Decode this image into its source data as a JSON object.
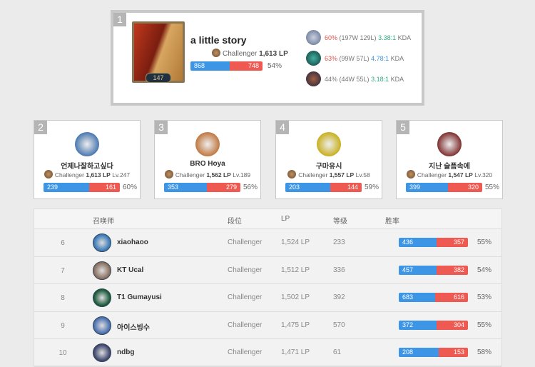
{
  "colors": {
    "win": "#3d95e5",
    "loss": "#ee5a52",
    "background": "#ebebeb"
  },
  "top": {
    "rank": "1",
    "name": "a little story",
    "level": "147",
    "tier": "Challenger",
    "lp": "1,613 LP",
    "wins": "868",
    "losses": "748",
    "winrate": "54%",
    "win_fraction": 0.54,
    "champions": [
      {
        "wr": "60%",
        "record": "(197W 129L)",
        "kda": "3.38:1",
        "kda_label": "KDA"
      },
      {
        "wr": "63%",
        "record": "(99W 57L)",
        "kda": "4.78:1",
        "kda_label": "KDA"
      },
      {
        "wr": "44%",
        "record": "(44W 55L)",
        "kda": "3.18:1",
        "kda_label": "KDA"
      }
    ]
  },
  "cards": [
    {
      "rank": "2",
      "name": "언제나잘하고싶다",
      "tier": "Challenger",
      "lp": "1,613 LP",
      "level": "Lv.247",
      "wins": "239",
      "losses": "161",
      "winrate": "60%"
    },
    {
      "rank": "3",
      "name": "BRO Hoya",
      "tier": "Challenger",
      "lp": "1,562 LP",
      "level": "Lv.189",
      "wins": "353",
      "losses": "279",
      "winrate": "56%"
    },
    {
      "rank": "4",
      "name": "구마유시",
      "tier": "Challenger",
      "lp": "1,557 LP",
      "level": "Lv.58",
      "wins": "203",
      "losses": "144",
      "winrate": "59%"
    },
    {
      "rank": "5",
      "name": "지난 슬픔속에",
      "tier": "Challenger",
      "lp": "1,547 LP",
      "level": "Lv.320",
      "wins": "399",
      "losses": "320",
      "winrate": "55%"
    }
  ],
  "table": {
    "headers": {
      "summoner": "召唤师",
      "tier": "段位",
      "lp": "LP",
      "level": "等级",
      "winrate": "胜率"
    },
    "rows": [
      {
        "rank": "6",
        "name": "xiaohaoo",
        "tier": "Challenger",
        "lp": "1,524 LP",
        "level": "233",
        "wins": "436",
        "losses": "357",
        "winrate": "55%"
      },
      {
        "rank": "7",
        "name": "KT Ucal",
        "tier": "Challenger",
        "lp": "1,512 LP",
        "level": "336",
        "wins": "457",
        "losses": "382",
        "winrate": "54%"
      },
      {
        "rank": "8",
        "name": "T1 Gumayusi",
        "tier": "Challenger",
        "lp": "1,502 LP",
        "level": "392",
        "wins": "683",
        "losses": "616",
        "winrate": "53%"
      },
      {
        "rank": "9",
        "name": "아이스빙수",
        "tier": "Challenger",
        "lp": "1,475 LP",
        "level": "570",
        "wins": "372",
        "losses": "304",
        "winrate": "55%"
      },
      {
        "rank": "10",
        "name": "ndbg",
        "tier": "Challenger",
        "lp": "1,471 LP",
        "level": "61",
        "wins": "208",
        "losses": "153",
        "winrate": "58%"
      }
    ]
  }
}
